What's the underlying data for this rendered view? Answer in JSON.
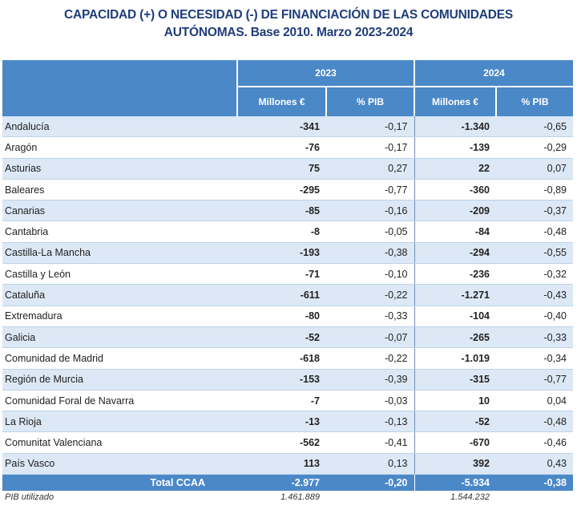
{
  "title": {
    "line1": "CAPACIDAD (+) O NECESIDAD (-) DE FINANCIACIÓN DE LAS COMUNIDADES",
    "line2": "AUTÓNOMAS. Base 2010. Marzo 2023-2024"
  },
  "header": {
    "year1": "2023",
    "year2": "2024",
    "millones": "Millones €",
    "pib": "% PIB"
  },
  "rows": [
    {
      "name": "Andalucía",
      "m2023": "-341",
      "p2023": "-0,17",
      "m2024": "-1.340",
      "p2024": "-0,65"
    },
    {
      "name": "Aragón",
      "m2023": "-76",
      "p2023": "-0,17",
      "m2024": "-139",
      "p2024": "-0,29"
    },
    {
      "name": "Asturias",
      "m2023": "75",
      "p2023": "0,27",
      "m2024": "22",
      "p2024": "0,07"
    },
    {
      "name": "Baleares",
      "m2023": "-295",
      "p2023": "-0,77",
      "m2024": "-360",
      "p2024": "-0,89"
    },
    {
      "name": "Canarias",
      "m2023": "-85",
      "p2023": "-0,16",
      "m2024": "-209",
      "p2024": "-0,37"
    },
    {
      "name": "Cantabria",
      "m2023": "-8",
      "p2023": "-0,05",
      "m2024": "-84",
      "p2024": "-0,48"
    },
    {
      "name": "Castilla-La Mancha",
      "m2023": "-193",
      "p2023": "-0,38",
      "m2024": "-294",
      "p2024": "-0,55"
    },
    {
      "name": "Castilla y León",
      "m2023": "-71",
      "p2023": "-0,10",
      "m2024": "-236",
      "p2024": "-0,32"
    },
    {
      "name": "Cataluña",
      "m2023": "-611",
      "p2023": "-0,22",
      "m2024": "-1.271",
      "p2024": "-0,43"
    },
    {
      "name": "Extremadura",
      "m2023": "-80",
      "p2023": "-0,33",
      "m2024": "-104",
      "p2024": "-0,40"
    },
    {
      "name": "Galicia",
      "m2023": "-52",
      "p2023": "-0,07",
      "m2024": "-265",
      "p2024": "-0,33"
    },
    {
      "name": "Comunidad de Madrid",
      "m2023": "-618",
      "p2023": "-0,22",
      "m2024": "-1.019",
      "p2024": "-0,34"
    },
    {
      "name": "Región de Murcia",
      "m2023": "-153",
      "p2023": "-0,39",
      "m2024": "-315",
      "p2024": "-0,77"
    },
    {
      "name": "Comunidad Foral de Navarra",
      "m2023": "-7",
      "p2023": "-0,03",
      "m2024": "10",
      "p2024": "0,04"
    },
    {
      "name": "La Rioja",
      "m2023": "-13",
      "p2023": "-0,13",
      "m2024": "-52",
      "p2024": "-0,48"
    },
    {
      "name": "Comunitat Valenciana",
      "m2023": "-562",
      "p2023": "-0,41",
      "m2024": "-670",
      "p2024": "-0,46"
    },
    {
      "name": "País Vasco",
      "m2023": "113",
      "p2023": "0,13",
      "m2024": "392",
      "p2024": "0,43"
    }
  ],
  "total": {
    "name": "Total CCAA",
    "m2023": "-2.977",
    "p2023": "-0,20",
    "m2024": "-5.934",
    "p2024": "-0,38"
  },
  "footer": {
    "label": "PIB utilizado",
    "v2023": "1.461.889",
    "v2024": "1.544.232"
  },
  "colors": {
    "header_bg": "#4a88c8",
    "stripe": "#dce8f5",
    "title": "#1f3d7a"
  }
}
